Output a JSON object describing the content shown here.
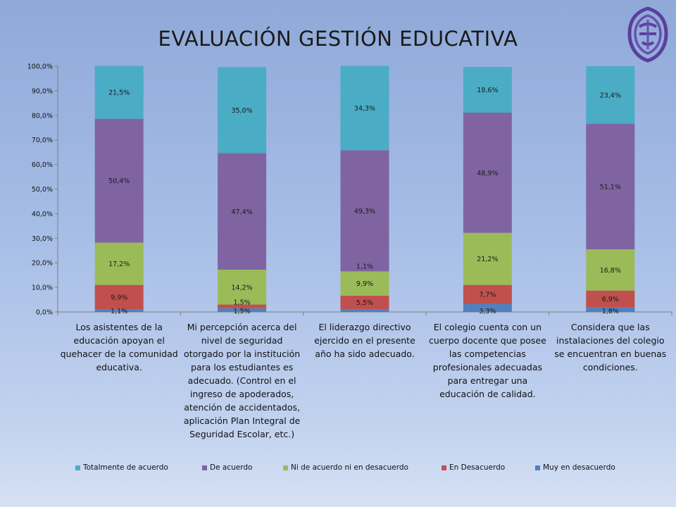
{
  "chart_data": {
    "type": "bar",
    "stacked": true,
    "title": "EVALUACIÓN GESTIÓN EDUCATIVA",
    "ylim": [
      0,
      100
    ],
    "yticks": [
      "0,0%",
      "10,0%",
      "20,0%",
      "30,0%",
      "40,0%",
      "50,0%",
      "60,0%",
      "70,0%",
      "80,0%",
      "90,0%",
      "100,0%"
    ],
    "categories": [
      "Los asistentes de la educación apoyan el quehacer de la comunidad educativa.",
      "Mi percepción acerca del nivel de seguridad otorgado por la institución para los estudiantes es adecuado. (Control en el ingreso de apoderados, atención de accidentados, aplicación Plan Integral de Seguridad Escolar, etc.)",
      "El liderazgo directivo ejercido en el presente año ha sido adecuado.",
      "El colegio cuenta con un cuerpo docente que posee las competencias profesionales adecuadas para entregar una educación de calidad.",
      "Considera que las instalaciones del colegio se encuentran en buenas condiciones."
    ],
    "category_lines": [
      [
        "Los asistentes de la",
        "educación apoyan el",
        "quehacer de la comunidad",
        "educativa."
      ],
      [
        "Mi percepción acerca del",
        "nivel de seguridad",
        "otorgado por la institución",
        "para los estudiantes es",
        "adecuado. (Control en el",
        "ingreso de apoderados,",
        "atención de accidentados,",
        "aplicación Plan Integral de",
        "Seguridad Escolar, etc.)"
      ],
      [
        "El liderazgo directivo",
        "ejercido en el presente",
        "año ha sido adecuado."
      ],
      [
        "El colegio cuenta con un",
        "cuerpo docente que posee",
        "las competencias",
        "profesionales adecuadas",
        "para entregar una",
        "educación de calidad."
      ],
      [
        "Considera que las",
        "instalaciones del colegio",
        "se encuentran en buenas",
        "condiciones."
      ]
    ],
    "series": [
      {
        "name": "Muy en desacuerdo",
        "color": "#4f81bd",
        "values": [
          1.1,
          1.5,
          1.1,
          3.3,
          1.8
        ],
        "labels": [
          "1,1%",
          "1,5%",
          "",
          "3,3%",
          "1,8%"
        ]
      },
      {
        "name": "En Desacuerdo",
        "color": "#c0504d",
        "values": [
          9.9,
          1.5,
          5.5,
          7.7,
          6.9
        ],
        "labels": [
          "9,9%",
          "1,5%",
          "5,5%",
          "7,7%",
          "6,9%"
        ]
      },
      {
        "name": "Ni de acuerdo ni en desacuerdo",
        "color": "#9bbb59",
        "values": [
          17.2,
          14.2,
          9.9,
          21.2,
          16.8
        ],
        "labels": [
          "17,2%",
          "14,2%",
          "9,9%",
          "21,2%",
          "16,8%"
        ]
      },
      {
        "name": "De acuerdo",
        "color": "#8064a2",
        "values": [
          50.4,
          47.4,
          49.3,
          48.9,
          51.1
        ],
        "labels": [
          "50,4%",
          "47,4%",
          "49,3%",
          "48,9%",
          "51,1%"
        ]
      },
      {
        "name": "Totalmente de acuerdo",
        "color": "#4bacc6",
        "values": [
          21.5,
          35.0,
          34.3,
          18.6,
          23.4
        ],
        "labels": [
          "21,5%",
          "35,0%",
          "34,3%",
          "18,6%",
          "23,4%"
        ]
      }
    ],
    "extra_labels": [
      {
        "category_index": 2,
        "text": "1,1%"
      }
    ],
    "legend": {
      "position": "bottom",
      "order": [
        "Totalmente de acuerdo",
        "De acuerdo",
        "Ni de acuerdo ni en desacuerdo",
        "En Desacuerdo",
        "Muy en desacuerdo"
      ]
    }
  }
}
